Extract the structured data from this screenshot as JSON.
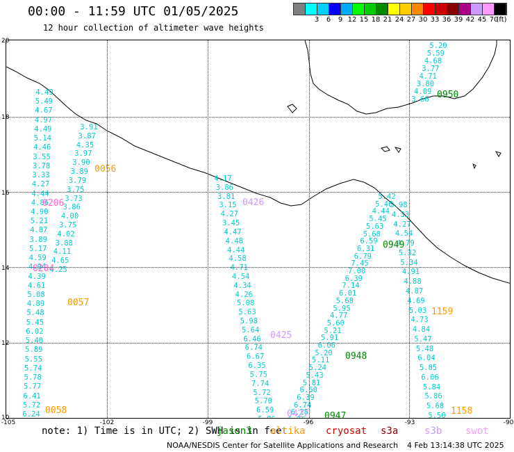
{
  "header": {
    "title": "00:00 - 11:59 UTC 01/05/2025",
    "subtitle": "12 hour collection of altimeter wave heights"
  },
  "colorbar": {
    "unit_label": "(ft)",
    "steps": [
      {
        "label": "",
        "color": "#808080"
      },
      {
        "label": "3",
        "color": "#00ffff"
      },
      {
        "label": "6",
        "color": "#00d0ff"
      },
      {
        "label": "9",
        "color": "#0000ff"
      },
      {
        "label": "12",
        "color": "#00aaff"
      },
      {
        "label": "15",
        "color": "#00ff00"
      },
      {
        "label": "18",
        "color": "#00cc00"
      },
      {
        "label": "21",
        "color": "#008800"
      },
      {
        "label": "24",
        "color": "#ffff00"
      },
      {
        "label": "27",
        "color": "#ffcc00"
      },
      {
        "label": "30",
        "color": "#ff8800"
      },
      {
        "label": "33",
        "color": "#ff0000"
      },
      {
        "label": "36",
        "color": "#cc0000"
      },
      {
        "label": "39",
        "color": "#880000"
      },
      {
        "label": "42",
        "color": "#aa0088"
      },
      {
        "label": "45",
        "color": "#cc99ff"
      },
      {
        "label": "70",
        "color": "#ff99ff"
      },
      {
        "label": "",
        "color": "#000000"
      }
    ]
  },
  "axes": {
    "lat_labels": [
      "20",
      "18",
      "16",
      "14",
      "12",
      "10"
    ],
    "lon_labels": [
      "-105",
      "-102",
      "-99",
      "-96",
      "-93",
      "-90"
    ]
  },
  "tracks": [
    {
      "satellite": "jason3",
      "color": "#00cccc",
      "values": [
        "4.49",
        "5.49",
        "4.67",
        "4.97",
        "4.49",
        "5.14",
        "4.46",
        "3.55",
        "3.78",
        "3.33",
        "4.27",
        "4.44",
        "4.86",
        "4.90",
        "5.21",
        "4.87",
        "3.89",
        "5.17",
        "4.59",
        "4.94",
        "4.39",
        "4.61",
        "5.08",
        "4.89",
        "5.48",
        "5.45",
        "6.02",
        "5.40",
        "5.89",
        "5.55",
        "5.74",
        "5.78",
        "5.77",
        "6.41",
        "5.72",
        "6.24"
      ]
    },
    {
      "satellite": "jason3",
      "color": "#00cccc",
      "values": [
        "3.91",
        "3.87",
        "4.35",
        "3.97",
        "3.90",
        "3.89",
        "3.79",
        "3.75",
        "3.73",
        "3.86",
        "4.00",
        "3.75",
        "4.02",
        "3.88",
        "4.11",
        "4.65",
        "4.25"
      ]
    },
    {
      "satellite": "jason3",
      "color": "#00cccc",
      "values": [
        "4.17",
        "3.86",
        "3.81",
        "3.15",
        "4.27",
        "3.45",
        "4.47",
        "4.48",
        "4.44",
        "4.58",
        "4.71",
        "4.54",
        "4.34",
        "4.26",
        "5.08",
        "5.63",
        "5.98",
        "5.64",
        "6.46",
        "6.74",
        "6.67",
        "6.35",
        "5.75",
        "7.74",
        "5.72",
        "5.70",
        "6.59",
        "5.86"
      ]
    },
    {
      "satellite": "jason3",
      "color": "#00cccc",
      "values": [
        "5.42",
        "5.46",
        "4.44",
        "5.45",
        "5.63",
        "5.68",
        "6.59",
        "6.31",
        "6.79",
        "7.45",
        "7.00",
        "6.39",
        "7.14",
        "6.01",
        "5.68",
        "5.95",
        "4.77",
        "5.60",
        "5.21",
        "5.91",
        "6.06",
        "5.20",
        "5.11",
        "5.24",
        "5.43",
        "5.81",
        "6.50",
        "6.39",
        "6.74",
        "6.28",
        "6.26"
      ]
    },
    {
      "satellite": "jason3",
      "color": "#00cccc",
      "values": [
        "3.98",
        "4.33",
        "4.27",
        "4.54",
        "4.79",
        "5.32",
        "5.34",
        "4.91",
        "4.88",
        "4.87",
        "4.69",
        "5.03",
        "4.73",
        "4.84",
        "5.47",
        "5.48",
        "6.04",
        "5.85",
        "6.06",
        "5.84",
        "5.86",
        "5.68",
        "5.50"
      ]
    },
    {
      "satellite": "jason3",
      "color": "#00cccc",
      "values": [
        "5.20",
        "5.59",
        "4.68",
        "3.77",
        "4.71",
        "3.80",
        "4.09",
        "3.66"
      ]
    }
  ],
  "time_labels": [
    {
      "text": "0056",
      "color": "#ff9900"
    },
    {
      "text": "0206",
      "color": "#ff66cc"
    },
    {
      "text": "0204",
      "color": "#ff66cc"
    },
    {
      "text": "0057",
      "color": "#ff9900"
    },
    {
      "text": "0058",
      "color": "#ff9900"
    },
    {
      "text": "0426",
      "color": "#cc99ff"
    },
    {
      "text": "0425",
      "color": "#cc99ff"
    },
    {
      "text": "0427",
      "color": "#cc99ff"
    },
    {
      "text": "0949",
      "color": "#008800"
    },
    {
      "text": "0948",
      "color": "#008800"
    },
    {
      "text": "0947",
      "color": "#008800"
    },
    {
      "text": "0950",
      "color": "#008800"
    },
    {
      "text": "1159",
      "color": "#ff9900"
    },
    {
      "text": "1158",
      "color": "#ff9900"
    }
  ],
  "footer": {
    "note": "note: 1) Time is in UTC; 2) SWH is in feet",
    "satellites": [
      {
        "name": "jason3",
        "color": "#008800"
      },
      {
        "name": "altika",
        "color": "#ff9900"
      },
      {
        "name": "cryosat",
        "color": "#cc0000"
      },
      {
        "name": "s3a",
        "color": "#880000"
      },
      {
        "name": "s3b",
        "color": "#cc99ff"
      },
      {
        "name": "swot",
        "color": "#ff99ff"
      }
    ],
    "credit": "NOAA/NESDIS Center for Satellite Applications and Research",
    "timestamp": "4 Feb 13:14:38 UTC 2025"
  }
}
